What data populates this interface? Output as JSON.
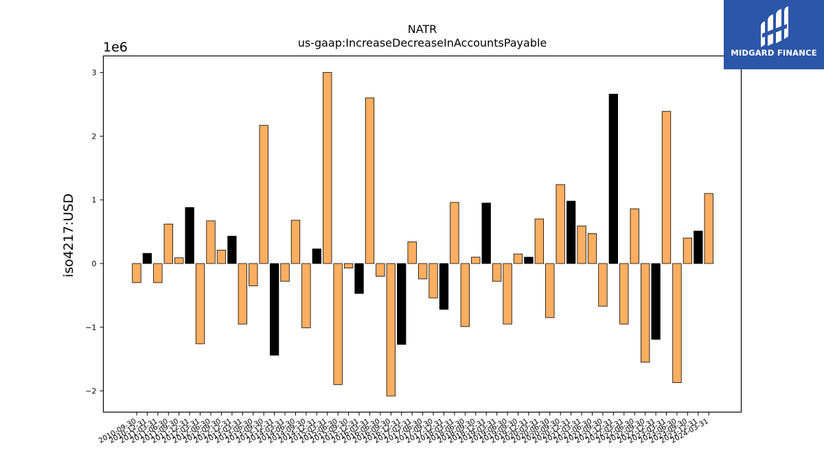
{
  "chart_data": {
    "type": "bar",
    "title": "NATR",
    "subtitle": "us-gaap:IncreaseDecreaseInAccountsPayable",
    "ylabel": "iso4217:USD",
    "xlabel": "",
    "y_offset_label": "1e6",
    "ylim": [
      -2.3,
      3.25
    ],
    "yticks": [
      -2,
      -1,
      0,
      1,
      2,
      3
    ],
    "ytick_labels": [
      "−2",
      "−1",
      "0",
      "1",
      "2",
      "3"
    ],
    "grid": false,
    "colors": {
      "default": "#fdae61",
      "highlight": "#000000",
      "edge": "#000000"
    },
    "bars": [
      {
        "label": "2010-09-30",
        "value": -0.3,
        "highlight": false
      },
      {
        "label": "2010-12-31",
        "value": 0.16,
        "highlight": true
      },
      {
        "label": "2011-03-31",
        "value": -0.3,
        "highlight": false
      },
      {
        "label": "2011-06-30",
        "value": 0.62,
        "highlight": false
      },
      {
        "label": "2011-09-30",
        "value": 0.09,
        "highlight": false
      },
      {
        "label": "2011-12-31",
        "value": 0.88,
        "highlight": true
      },
      {
        "label": "2012-03-31",
        "value": -1.26,
        "highlight": false
      },
      {
        "label": "2012-06-30",
        "value": 0.67,
        "highlight": false
      },
      {
        "label": "2012-09-30",
        "value": 0.21,
        "highlight": false
      },
      {
        "label": "2012-12-31",
        "value": 0.43,
        "highlight": true
      },
      {
        "label": "2013-03-31",
        "value": -0.95,
        "highlight": false
      },
      {
        "label": "2013-06-30",
        "value": -0.35,
        "highlight": false
      },
      {
        "label": "2013-09-30",
        "value": 2.17,
        "highlight": false
      },
      {
        "label": "2013-12-31",
        "value": -1.44,
        "highlight": true
      },
      {
        "label": "2014-03-31",
        "value": -0.28,
        "highlight": false
      },
      {
        "label": "2014-06-30",
        "value": 0.68,
        "highlight": false
      },
      {
        "label": "2014-09-30",
        "value": -1.01,
        "highlight": false
      },
      {
        "label": "2014-12-31",
        "value": 0.23,
        "highlight": true
      },
      {
        "label": "2015-03-31",
        "value": 3.0,
        "highlight": false
      },
      {
        "label": "2015-06-30",
        "value": -1.9,
        "highlight": false
      },
      {
        "label": "2015-09-30",
        "value": -0.07,
        "highlight": false
      },
      {
        "label": "2015-12-31",
        "value": -0.47,
        "highlight": true
      },
      {
        "label": "2016-03-31",
        "value": 2.6,
        "highlight": false
      },
      {
        "label": "2016-06-30",
        "value": -0.2,
        "highlight": false
      },
      {
        "label": "2016-09-30",
        "value": -2.08,
        "highlight": false
      },
      {
        "label": "2016-12-31",
        "value": -1.27,
        "highlight": true
      },
      {
        "label": "2017-03-31",
        "value": 0.34,
        "highlight": false
      },
      {
        "label": "2017-06-30",
        "value": -0.24,
        "highlight": false
      },
      {
        "label": "2017-09-30",
        "value": -0.54,
        "highlight": false
      },
      {
        "label": "2017-12-31",
        "value": -0.72,
        "highlight": true
      },
      {
        "label": "2018-03-31",
        "value": 0.96,
        "highlight": false
      },
      {
        "label": "2018-06-30",
        "value": -0.99,
        "highlight": false
      },
      {
        "label": "2018-09-30",
        "value": 0.1,
        "highlight": false
      },
      {
        "label": "2018-12-31",
        "value": 0.95,
        "highlight": true
      },
      {
        "label": "2019-03-31",
        "value": -0.28,
        "highlight": false
      },
      {
        "label": "2019-06-30",
        "value": -0.95,
        "highlight": false
      },
      {
        "label": "2019-09-30",
        "value": 0.15,
        "highlight": false
      },
      {
        "label": "2019-12-31",
        "value": 0.1,
        "highlight": true
      },
      {
        "label": "2020-03-31",
        "value": 0.7,
        "highlight": false
      },
      {
        "label": "2020-06-30",
        "value": -0.85,
        "highlight": false
      },
      {
        "label": "2020-09-30",
        "value": 1.24,
        "highlight": false
      },
      {
        "label": "2020-12-31",
        "value": 0.98,
        "highlight": true
      },
      {
        "label": "2021-03-31",
        "value": 0.59,
        "highlight": false
      },
      {
        "label": "2021-06-30",
        "value": 0.47,
        "highlight": false
      },
      {
        "label": "2021-09-30",
        "value": -0.67,
        "highlight": false
      },
      {
        "label": "2021-12-31",
        "value": 2.66,
        "highlight": true
      },
      {
        "label": "2022-03-31",
        "value": -0.95,
        "highlight": false
      },
      {
        "label": "2022-06-30",
        "value": 0.86,
        "highlight": false
      },
      {
        "label": "2022-09-30",
        "value": -1.55,
        "highlight": false
      },
      {
        "label": "2022-12-31",
        "value": -1.19,
        "highlight": true
      },
      {
        "label": "2023-03-31",
        "value": 2.39,
        "highlight": false
      },
      {
        "label": "2023-06-30",
        "value": -1.87,
        "highlight": false
      },
      {
        "label": "2023-09-30",
        "value": 0.4,
        "highlight": false
      },
      {
        "label": "2023-12-31",
        "value": 0.51,
        "highlight": true
      },
      {
        "label": "2024-03-31",
        "value": 1.1,
        "highlight": false
      }
    ]
  },
  "logo": {
    "text": "MIDGARD FINANCE",
    "background": "#2c57a8",
    "text_color": "#ffffff"
  }
}
